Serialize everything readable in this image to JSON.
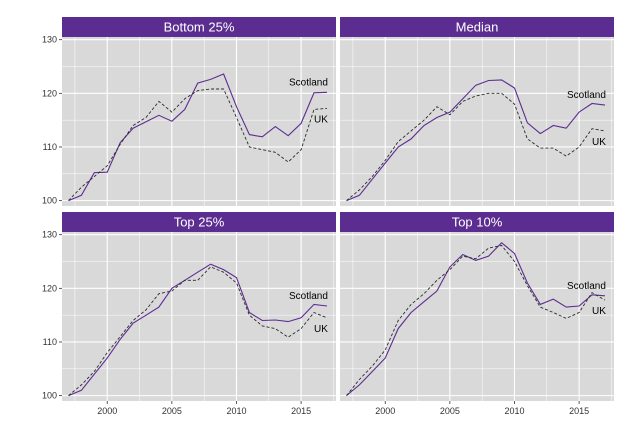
{
  "colors": {
    "accent": "#5c2d91",
    "strip_bg": "#5c2d91",
    "panel_bg": "#d9d9d9",
    "grid": "#ffffff",
    "scotland_line": "#5c2d91",
    "uk_line": "#2b2b2b"
  },
  "chart_data": [
    {
      "type": "line",
      "title": "Bottom 25%",
      "xlim": [
        1996.5,
        2017.7
      ],
      "ylim": [
        99,
        130.5
      ],
      "x_ticks": [
        "2000",
        "2005",
        "2010",
        "2015"
      ],
      "y_ticks": [
        "100",
        "110",
        "120",
        "130"
      ],
      "grid": true,
      "series": [
        {
          "name": "Scotland",
          "style": "solid",
          "x": [
            1997,
            1998,
            1999,
            2000,
            2001,
            2002,
            2003,
            2004,
            2005,
            2006,
            2007,
            2008,
            2009,
            2010,
            2011,
            2012,
            2013,
            2014,
            2015,
            2016,
            2017
          ],
          "y": [
            100,
            101,
            105.2,
            105.3,
            110.8,
            113.5,
            114.7,
            115.9,
            114.8,
            117,
            121.9,
            122.6,
            123.6,
            117.5,
            112.3,
            111.9,
            113.8,
            112.1,
            114.4,
            120.1,
            120.2
          ]
        },
        {
          "name": "UK",
          "style": "dashed",
          "x": [
            1997,
            1998,
            1999,
            2000,
            2001,
            2002,
            2003,
            2004,
            2005,
            2006,
            2007,
            2008,
            2009,
            2010,
            2011,
            2012,
            2013,
            2014,
            2015,
            2016,
            2017
          ],
          "y": [
            100,
            102.5,
            104.5,
            106.5,
            110.5,
            114,
            115.5,
            118.5,
            116.5,
            119,
            120.5,
            120.8,
            120.8,
            115.5,
            110,
            109.5,
            109,
            107.2,
            109.5,
            117,
            117.2
          ]
        }
      ]
    },
    {
      "type": "line",
      "title": "Median",
      "xlim": [
        1996.5,
        2017.7
      ],
      "ylim": [
        99,
        130.5
      ],
      "x_ticks": [
        "2000",
        "2005",
        "2010",
        "2015"
      ],
      "y_ticks": [
        "100",
        "110",
        "120",
        "130"
      ],
      "grid": true,
      "series": [
        {
          "name": "Scotland",
          "style": "solid",
          "x": [
            1997,
            1998,
            1999,
            2000,
            2001,
            2002,
            2003,
            2004,
            2005,
            2006,
            2007,
            2008,
            2009,
            2010,
            2011,
            2012,
            2013,
            2014,
            2015,
            2016,
            2017
          ],
          "y": [
            100,
            101,
            104,
            107,
            110,
            111.5,
            114,
            115.5,
            116.5,
            119,
            121.5,
            122.4,
            122.5,
            121,
            114.5,
            112.5,
            114,
            113.5,
            116.5,
            118.1,
            117.8
          ]
        },
        {
          "name": "UK",
          "style": "dashed",
          "x": [
            1997,
            1998,
            1999,
            2000,
            2001,
            2002,
            2003,
            2004,
            2005,
            2006,
            2007,
            2008,
            2009,
            2010,
            2011,
            2012,
            2013,
            2014,
            2015,
            2016,
            2017
          ],
          "y": [
            100,
            102,
            104.5,
            107.5,
            111,
            113,
            115,
            117.5,
            116,
            118.5,
            119.5,
            120,
            120,
            118,
            111.5,
            109.8,
            109.8,
            108.3,
            110,
            113.4,
            113
          ]
        }
      ]
    },
    {
      "type": "line",
      "title": "Top 25%",
      "xlim": [
        1996.5,
        2017.7
      ],
      "ylim": [
        99,
        130.5
      ],
      "x_ticks": [
        "2000",
        "2005",
        "2010",
        "2015"
      ],
      "y_ticks": [
        "100",
        "110",
        "120",
        "130"
      ],
      "grid": true,
      "series": [
        {
          "name": "Scotland",
          "style": "solid",
          "x": [
            1997,
            1998,
            1999,
            2000,
            2001,
            2002,
            2003,
            2004,
            2005,
            2006,
            2007,
            2008,
            2009,
            2010,
            2011,
            2012,
            2013,
            2014,
            2015,
            2016,
            2017
          ],
          "y": [
            100,
            101,
            104,
            107,
            110.5,
            113.5,
            115,
            116.5,
            120,
            121.5,
            123,
            124.5,
            123.5,
            122,
            115.5,
            114,
            114.1,
            113.8,
            114.5,
            117,
            116.7
          ]
        },
        {
          "name": "UK",
          "style": "dashed",
          "x": [
            1997,
            1998,
            1999,
            2000,
            2001,
            2002,
            2003,
            2004,
            2005,
            2006,
            2007,
            2008,
            2009,
            2010,
            2011,
            2012,
            2013,
            2014,
            2015,
            2016,
            2017
          ],
          "y": [
            100,
            102,
            104.5,
            108,
            111,
            114,
            116,
            119,
            119.5,
            121.5,
            121.5,
            124,
            123,
            121,
            115,
            113,
            112.5,
            110.9,
            112.5,
            115.5,
            114.5
          ]
        }
      ]
    },
    {
      "type": "line",
      "title": "Top 10%",
      "xlim": [
        1996.5,
        2017.7
      ],
      "ylim": [
        99,
        130.5
      ],
      "x_ticks": [
        "2000",
        "2005",
        "2010",
        "2015"
      ],
      "y_ticks": [
        "100",
        "110",
        "120",
        "130"
      ],
      "grid": true,
      "series": [
        {
          "name": "Scotland",
          "style": "solid",
          "x": [
            1997,
            1998,
            1999,
            2000,
            2001,
            2002,
            2003,
            2004,
            2005,
            2006,
            2007,
            2008,
            2009,
            2010,
            2011,
            2012,
            2013,
            2014,
            2015,
            2016,
            2017
          ],
          "y": [
            100,
            102,
            104.5,
            107,
            112.5,
            115.5,
            117.5,
            119.5,
            124,
            126.3,
            125.2,
            126,
            128.5,
            126.5,
            121,
            117,
            118,
            116.5,
            116.7,
            118.8,
            118.6
          ]
        },
        {
          "name": "UK",
          "style": "dashed",
          "x": [
            1997,
            1998,
            1999,
            2000,
            2001,
            2002,
            2003,
            2004,
            2005,
            2006,
            2007,
            2008,
            2009,
            2010,
            2011,
            2012,
            2013,
            2014,
            2015,
            2016,
            2017
          ],
          "y": [
            100,
            103,
            105.5,
            108.5,
            114,
            117,
            119,
            121.5,
            123.5,
            126,
            125.5,
            127.5,
            128,
            125,
            120.5,
            116.5,
            115.5,
            114.4,
            115.5,
            119.2,
            117.8
          ]
        }
      ]
    }
  ]
}
